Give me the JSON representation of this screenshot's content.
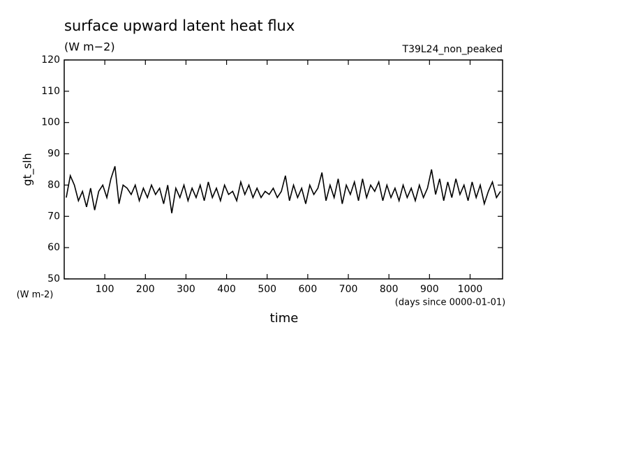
{
  "chart_data": {
    "type": "line",
    "title": "surface upward latent heat flux",
    "subtitle": "(W m−2)",
    "experiment": "T39L24_non_peaked",
    "y_label": "gt_slh",
    "y_unit": "(W m-2)",
    "x_label": "time",
    "x_unit": "(days since 0000-01-01)",
    "xlim": [
      0,
      1080
    ],
    "xticks": [
      100,
      200,
      300,
      400,
      500,
      600,
      700,
      800,
      900,
      1000
    ],
    "ylim": [
      50,
      120
    ],
    "yticks": [
      50,
      60,
      70,
      80,
      90,
      100,
      110,
      120
    ],
    "color": "#000000",
    "x": [
      5,
      15,
      25,
      35,
      45,
      55,
      65,
      75,
      85,
      95,
      105,
      115,
      125,
      135,
      145,
      155,
      165,
      175,
      185,
      195,
      205,
      215,
      225,
      235,
      245,
      255,
      265,
      275,
      285,
      295,
      305,
      315,
      325,
      335,
      345,
      355,
      365,
      375,
      385,
      395,
      405,
      415,
      425,
      435,
      445,
      455,
      465,
      475,
      485,
      495,
      505,
      515,
      525,
      535,
      545,
      555,
      565,
      575,
      585,
      595,
      605,
      615,
      625,
      635,
      645,
      655,
      665,
      675,
      685,
      695,
      705,
      715,
      725,
      735,
      745,
      755,
      765,
      775,
      785,
      795,
      805,
      815,
      825,
      835,
      845,
      855,
      865,
      875,
      885,
      895,
      905,
      915,
      925,
      935,
      945,
      955,
      965,
      975,
      985,
      995,
      1005,
      1015,
      1025,
      1035,
      1045,
      1055,
      1065,
      1075
    ],
    "values": [
      76,
      83,
      80,
      75,
      78,
      73,
      79,
      72,
      78,
      80,
      76,
      82,
      86,
      74,
      80,
      79,
      77,
      80,
      75,
      79,
      76,
      80,
      77,
      79,
      74,
      80,
      71,
      79,
      76,
      80,
      75,
      79,
      76,
      80,
      75,
      81,
      76,
      79,
      75,
      80,
      77,
      78,
      75,
      81,
      77,
      80,
      76,
      79,
      76,
      78,
      77,
      79,
      76,
      78,
      83,
      75,
      80,
      76,
      79,
      74,
      80,
      77,
      79,
      84,
      75,
      80,
      76,
      82,
      74,
      80,
      77,
      81,
      75,
      82,
      76,
      80,
      78,
      81,
      75,
      80,
      76,
      79,
      75,
      80,
      76,
      79,
      75,
      80,
      76,
      79,
      85,
      77,
      82,
      75,
      81,
      76,
      82,
      77,
      80,
      75,
      81,
      76,
      80,
      74,
      78,
      81,
      76,
      78
    ]
  }
}
